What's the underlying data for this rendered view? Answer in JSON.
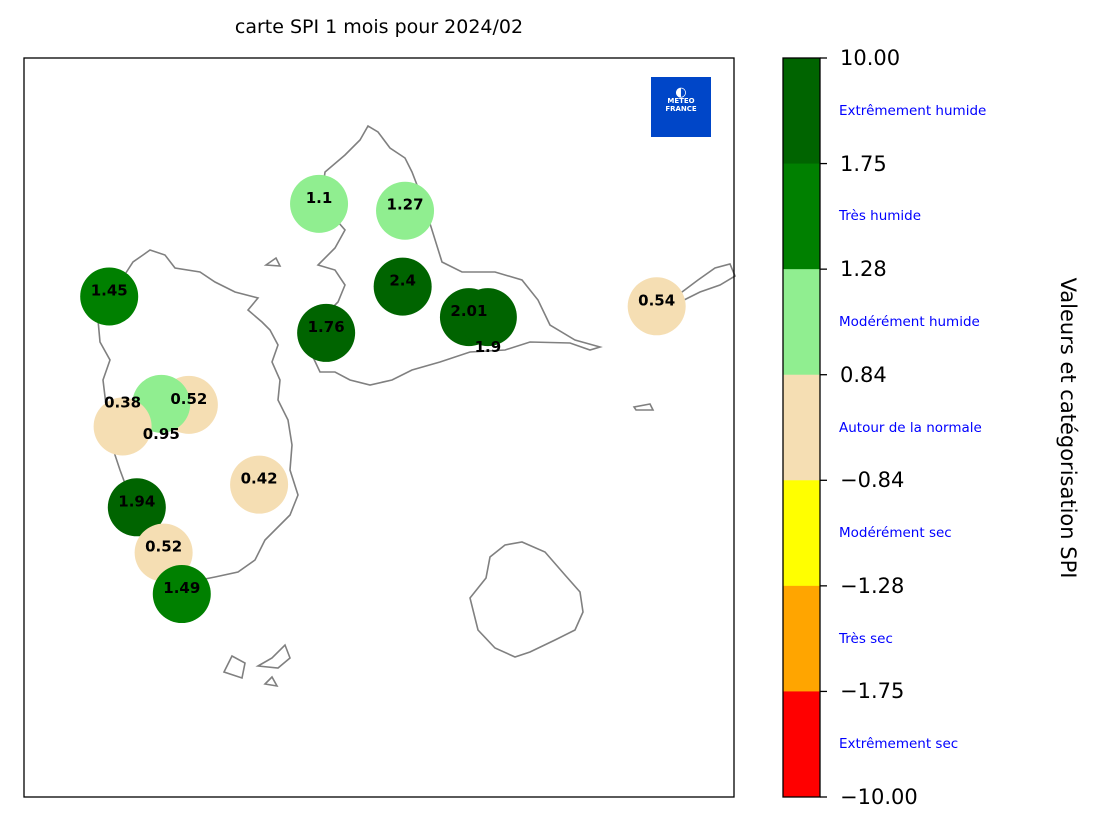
{
  "title": "carte SPI 1 mois pour 2024/02",
  "logo_text": "METEO FRANCE",
  "colorbar": {
    "label": "Valeurs et catégorisation SPI",
    "ticks": [
      "10.00",
      "1.75",
      "1.28",
      "0.84",
      "−0.84",
      "−1.28",
      "−1.75",
      "−10.00"
    ],
    "categories": [
      {
        "label": "Extrêmement humide",
        "color": "#006400"
      },
      {
        "label": "Très humide",
        "color": "#008000"
      },
      {
        "label": "Modérément humide",
        "color": "#90ee90"
      },
      {
        "label": "Autour de la normale",
        "color": "#f5deb3"
      },
      {
        "label": "Modérément sec",
        "color": "#ffff00"
      },
      {
        "label": "Très sec",
        "color": "#ffa500"
      },
      {
        "label": "Extrêmement sec",
        "color": "#ff0000"
      }
    ]
  },
  "chart_data": {
    "type": "scatter",
    "title": "carte SPI 1 mois pour 2024/02",
    "xlim": [
      -61.85,
      -60.95
    ],
    "ylim": [
      15.8,
      16.55
    ],
    "thresholds": [
      -10,
      -1.75,
      -1.28,
      -0.84,
      0.84,
      1.28,
      1.75,
      10
    ],
    "points": [
      {
        "lon": -61.476,
        "lat": 16.402,
        "label": "1.1",
        "value": 1.1
      },
      {
        "lon": -61.367,
        "lat": 16.395,
        "label": "1.27",
        "value": 1.27
      },
      {
        "lon": -61.37,
        "lat": 16.318,
        "label": "2.4",
        "value": 2.4
      },
      {
        "lon": -61.286,
        "lat": 16.287,
        "label": "2.01",
        "value": 2.01
      },
      {
        "lon": -61.262,
        "lat": 16.287,
        "label": "1.9",
        "value": 1.9
      },
      {
        "lon": -61.048,
        "lat": 16.298,
        "label": "0.54",
        "value": 0.54
      },
      {
        "lon": -61.742,
        "lat": 16.308,
        "label": "1.45",
        "value": 1.45
      },
      {
        "lon": -61.467,
        "lat": 16.271,
        "label": "1.76",
        "value": 1.76
      },
      {
        "lon": -61.641,
        "lat": 16.198,
        "label": "0.52",
        "value": 0.52
      },
      {
        "lon": -61.676,
        "lat": 16.199,
        "label": "0.95",
        "value": 0.95
      },
      {
        "lon": -61.725,
        "lat": 16.176,
        "label": "0.38",
        "value": 0.38
      },
      {
        "lon": -61.552,
        "lat": 16.117,
        "label": "0.42",
        "value": 0.42
      },
      {
        "lon": -61.707,
        "lat": 16.094,
        "label": "1.94",
        "value": 1.94
      },
      {
        "lon": -61.673,
        "lat": 16.048,
        "label": "0.52",
        "value": 0.52
      },
      {
        "lon": -61.65,
        "lat": 16.006,
        "label": "1.49",
        "value": 1.49
      }
    ]
  }
}
